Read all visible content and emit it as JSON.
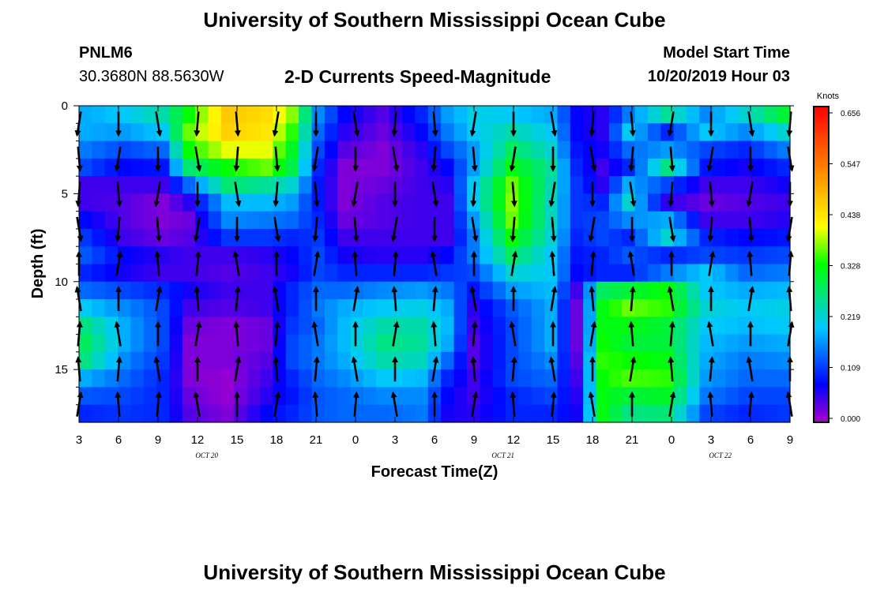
{
  "header": {
    "title": "University of Southern Mississippi Ocean Cube",
    "station_id": "PNLM6",
    "station_coords": "30.3680N 88.5630W",
    "subtitle": "2-D Currents Speed-Magnitude",
    "model_start_label": "Model Start Time",
    "model_start_value": "10/20/2019 Hour 03"
  },
  "footer": {
    "title": "University of Southern Mississippi Ocean Cube"
  },
  "chart_data": {
    "type": "heatmap",
    "title": "2-D Currents Speed-Magnitude",
    "xlabel": "Forecast Time(Z)",
    "ylabel": "Depth (ft)",
    "x_tick_labels": [
      "3",
      "6",
      "9",
      "12",
      "15",
      "18",
      "21",
      "0",
      "3",
      "6",
      "9",
      "12",
      "15",
      "18",
      "21",
      "0",
      "3",
      "6",
      "9"
    ],
    "x_range_hours": [
      0,
      54
    ],
    "date_labels": [
      {
        "text": "OCT 20",
        "at_hour": 9.7
      },
      {
        "text": "OCT 21",
        "at_hour": 32.2
      },
      {
        "text": "OCT 22",
        "at_hour": 48.7
      }
    ],
    "y_tick_labels": [
      "0",
      "5",
      "10",
      "15"
    ],
    "y_ticks": [
      0,
      5,
      10,
      15
    ],
    "ylim": [
      0,
      18
    ],
    "y_inverted": true,
    "colorbar": {
      "unit_label": "Knots",
      "ticks": [
        "0.656",
        "0.547",
        "0.438",
        "0.328",
        "0.219",
        "0.109",
        "0.000"
      ],
      "vmin": 0,
      "vmax": 0.656,
      "colors": [
        "#aa00cc",
        "#0000ff",
        "#00c8ff",
        "#00ff00",
        "#ffff00",
        "#ff7700",
        "#ff0000"
      ]
    },
    "time_columns": [
      0,
      1,
      2,
      3,
      4,
      5,
      6,
      7,
      8,
      9,
      10,
      11,
      12,
      13,
      14,
      15,
      16,
      17,
      18,
      19,
      20,
      21,
      22,
      23,
      24,
      25,
      26,
      27,
      28,
      29,
      30,
      31,
      32,
      33,
      34,
      35,
      36,
      37,
      38,
      39,
      40,
      41,
      42,
      43,
      44,
      45,
      46,
      47,
      48,
      49,
      50,
      51,
      52,
      53,
      54
    ],
    "depth_rows": [
      0.5,
      1.5,
      2.5,
      3.5,
      4.5,
      5.5,
      6.5,
      7.5,
      8.5,
      9.5,
      10.5,
      11.5,
      12.5,
      13.5,
      14.5,
      15.5,
      16.5,
      17.5
    ],
    "speed_profiles": [
      {
        "hour": 0,
        "speeds": [
          0.18,
          0.18,
          0.15,
          0.12,
          0.05,
          0.05,
          0.08,
          0.11,
          0.13,
          0.1,
          0.14,
          0.2,
          0.26,
          0.28,
          0.26,
          0.18,
          0.13,
          0.1
        ]
      },
      {
        "hour": 3,
        "speeds": [
          0.2,
          0.17,
          0.12,
          0.08,
          0.05,
          0.04,
          0.04,
          0.05,
          0.08,
          0.07,
          0.12,
          0.16,
          0.18,
          0.18,
          0.16,
          0.14,
          0.12,
          0.11
        ]
      },
      {
        "hour": 6,
        "speeds": [
          0.24,
          0.2,
          0.14,
          0.09,
          0.05,
          0.02,
          0.02,
          0.03,
          0.06,
          0.05,
          0.1,
          0.12,
          0.12,
          0.12,
          0.11,
          0.1,
          0.1,
          0.1
        ]
      },
      {
        "hour": 8,
        "speeds": [
          0.33,
          0.36,
          0.33,
          0.27,
          0.14,
          0.06,
          0.03,
          0.04,
          0.05,
          0.05,
          0.07,
          0.05,
          0.03,
          0.02,
          0.02,
          0.02,
          0.03,
          0.04
        ]
      },
      {
        "hour": 11,
        "speeds": [
          0.46,
          0.45,
          0.4,
          0.33,
          0.27,
          0.19,
          0.16,
          0.11,
          0.05,
          0.04,
          0.05,
          0.04,
          0.02,
          0.02,
          0.02,
          0.01,
          0.01,
          0.02
        ]
      },
      {
        "hour": 14,
        "speeds": [
          0.44,
          0.43,
          0.4,
          0.36,
          0.25,
          0.19,
          0.15,
          0.11,
          0.06,
          0.05,
          0.05,
          0.05,
          0.03,
          0.03,
          0.04,
          0.05,
          0.06,
          0.08
        ]
      },
      {
        "hour": 16,
        "speeds": [
          0.37,
          0.34,
          0.31,
          0.29,
          0.22,
          0.17,
          0.14,
          0.1,
          0.08,
          0.07,
          0.1,
          0.1,
          0.11,
          0.12,
          0.12,
          0.1,
          0.09,
          0.1
        ]
      },
      {
        "hour": 18,
        "speeds": [
          0.16,
          0.14,
          0.12,
          0.1,
          0.09,
          0.09,
          0.1,
          0.11,
          0.12,
          0.12,
          0.14,
          0.15,
          0.14,
          0.15,
          0.15,
          0.14,
          0.13,
          0.13
        ]
      },
      {
        "hour": 20,
        "speeds": [
          0.08,
          0.06,
          0.04,
          0.02,
          0.02,
          0.02,
          0.03,
          0.05,
          0.07,
          0.1,
          0.14,
          0.18,
          0.19,
          0.19,
          0.18,
          0.16,
          0.14,
          0.14
        ]
      },
      {
        "hour": 23,
        "speeds": [
          0.04,
          0.03,
          0.02,
          0.02,
          0.03,
          0.04,
          0.04,
          0.05,
          0.06,
          0.1,
          0.16,
          0.2,
          0.24,
          0.26,
          0.24,
          0.2,
          0.16,
          0.14
        ]
      },
      {
        "hour": 26,
        "speeds": [
          0.1,
          0.08,
          0.06,
          0.05,
          0.05,
          0.05,
          0.05,
          0.05,
          0.06,
          0.1,
          0.17,
          0.21,
          0.24,
          0.25,
          0.23,
          0.19,
          0.16,
          0.15
        ]
      },
      {
        "hour": 28,
        "speeds": [
          0.17,
          0.15,
          0.12,
          0.08,
          0.06,
          0.05,
          0.05,
          0.05,
          0.08,
          0.11,
          0.15,
          0.18,
          0.19,
          0.18,
          0.14,
          0.1,
          0.08,
          0.07
        ]
      },
      {
        "hour": 30,
        "speeds": [
          0.21,
          0.2,
          0.17,
          0.17,
          0.2,
          0.2,
          0.17,
          0.15,
          0.15,
          0.12,
          0.09,
          0.06,
          0.05,
          0.04,
          0.04,
          0.05,
          0.05,
          0.06
        ]
      },
      {
        "hour": 33,
        "speeds": [
          0.2,
          0.24,
          0.28,
          0.32,
          0.36,
          0.37,
          0.36,
          0.33,
          0.28,
          0.22,
          0.17,
          0.13,
          0.12,
          0.12,
          0.12,
          0.12,
          0.1,
          0.1
        ]
      },
      {
        "hour": 36,
        "speeds": [
          0.18,
          0.2,
          0.22,
          0.25,
          0.24,
          0.23,
          0.23,
          0.22,
          0.2,
          0.2,
          0.19,
          0.18,
          0.18,
          0.18,
          0.16,
          0.14,
          0.12,
          0.1
        ]
      },
      {
        "hour": 38,
        "speeds": [
          0.08,
          0.08,
          0.09,
          0.1,
          0.11,
          0.11,
          0.11,
          0.1,
          0.09,
          0.08,
          0.05,
          0.03,
          0.03,
          0.03,
          0.04,
          0.05,
          0.06,
          0.07
        ]
      },
      {
        "hour": 40,
        "speeds": [
          0.06,
          0.06,
          0.07,
          0.05,
          0.06,
          0.1,
          0.12,
          0.12,
          0.1,
          0.1,
          0.28,
          0.32,
          0.32,
          0.33,
          0.34,
          0.33,
          0.32,
          0.32
        ]
      },
      {
        "hour": 42,
        "speeds": [
          0.15,
          0.2,
          0.14,
          0.1,
          0.18,
          0.22,
          0.16,
          0.1,
          0.13,
          0.1,
          0.3,
          0.36,
          0.32,
          0.3,
          0.33,
          0.35,
          0.3,
          0.26
        ]
      },
      {
        "hour": 45,
        "speeds": [
          0.25,
          0.1,
          0.17,
          0.26,
          0.12,
          0.06,
          0.18,
          0.22,
          0.1,
          0.15,
          0.33,
          0.34,
          0.3,
          0.3,
          0.32,
          0.34,
          0.31,
          0.27
        ]
      },
      {
        "hour": 48,
        "speeds": [
          0.16,
          0.2,
          0.12,
          0.09,
          0.05,
          0.03,
          0.05,
          0.1,
          0.12,
          0.2,
          0.2,
          0.22,
          0.2,
          0.19,
          0.18,
          0.17,
          0.15,
          0.12
        ]
      },
      {
        "hour": 51,
        "speeds": [
          0.22,
          0.16,
          0.1,
          0.07,
          0.05,
          0.04,
          0.05,
          0.08,
          0.11,
          0.14,
          0.18,
          0.2,
          0.19,
          0.17,
          0.15,
          0.14,
          0.12,
          0.1
        ]
      },
      {
        "hour": 54,
        "speeds": [
          0.3,
          0.22,
          0.15,
          0.1,
          0.07,
          0.05,
          0.06,
          0.09,
          0.12,
          0.15,
          0.19,
          0.21,
          0.2,
          0.18,
          0.16,
          0.14,
          0.12,
          0.11
        ]
      }
    ],
    "vector_columns_hours": [
      0,
      3,
      6,
      9,
      12,
      15,
      18,
      21,
      24,
      27,
      30,
      33,
      36,
      39,
      42,
      45,
      48,
      51,
      54
    ],
    "vector_depths_ft": [
      1,
      3,
      5,
      7,
      9,
      11,
      13,
      15,
      17
    ],
    "vector_direction_note": "arrows point mostly downward (southward) in upper layers and upward (northward) in lower layers"
  }
}
